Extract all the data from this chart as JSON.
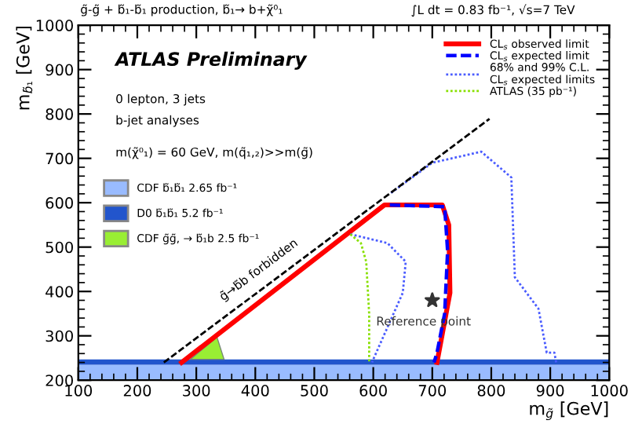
{
  "chart_data": {
    "type": "line",
    "title": "g̃-g̃ + b̃₁-b̃₁ production, b̃₁→ b+χ̃⁰₁",
    "subtitle": "∫L dt = 0.83 fb⁻¹, √s=7 TeV",
    "xlabel": "m$_{g̃}$ [GeV]",
    "ylabel": "m$_{b̃₁}$ [GeV]",
    "xlim": [
      100,
      1000
    ],
    "ylim": [
      200,
      1000
    ],
    "xticks": [
      100,
      200,
      300,
      400,
      500,
      600,
      700,
      800,
      900,
      1000
    ],
    "yticks": [
      200,
      300,
      400,
      500,
      600,
      700,
      800,
      900,
      1000
    ],
    "grid": false,
    "legend": "top right",
    "series": [
      {
        "name": "CL$_{s}$ observed limit",
        "color": "#ff0000",
        "line_style": "solid",
        "x": [
          275,
          619,
          717,
          728,
          730,
          717,
          708
        ],
        "values": [
          240,
          595,
          595,
          550,
          397,
          304,
          240
        ]
      },
      {
        "name": "CL$_{s}$ expected limit",
        "color": "#0000ff",
        "line_style": "dashed",
        "x": [
          628,
          721,
          726,
          721,
          708,
          703
        ],
        "values": [
          595,
          591,
          491,
          350,
          262,
          240
        ]
      },
      {
        "name": "68% and 99% C.L.\nCL$_{s}$ expected limits",
        "color": "#4a5cff",
        "line_style": "dotted",
        "x": [
          630,
          700,
          783,
          834,
          840,
          880,
          894,
          907,
          910
        ],
        "values": [
          622,
          690,
          715,
          657,
          432,
          361,
          262,
          262,
          240
        ]
      },
      {
        "color": "#4a5cff",
        "line_style": "dotted",
        "x": [
          561,
          624,
          655,
          650,
          619,
          601,
          598
        ],
        "values": [
          529,
          509,
          467,
          397,
          304,
          250,
          240
        ]
      },
      {
        "name": "ATLAS (35 pb⁻¹)",
        "color": "#88e000",
        "line_style": "dotted",
        "x": [
          561,
          579,
          588,
          593,
          593
        ],
        "values": [
          529,
          509,
          467,
          350,
          240
        ]
      },
      {
        "color": "#000000",
        "line_style": "dashed",
        "x": [
          245,
          797
        ],
        "values": [
          240,
          789
        ]
      },
      {
        "type": "area",
        "name": "CDF g̃g̃, → b̃₁b 2.5 fb⁻¹",
        "color": "#99ee33",
        "x": [
          290,
          335,
          347
        ],
        "values": [
          247,
          297,
          247
        ]
      },
      {
        "type": "scatter",
        "marker": "star",
        "color": "#333333",
        "x": [
          700
        ],
        "values": [
          380
        ]
      }
    ],
    "bands": [
      {
        "axis": "y",
        "from": 200,
        "to": 235,
        "label": "CDF b̃₁b̃₁ 2.65 fb⁻¹",
        "color": "#99bbff"
      },
      {
        "axis": "y",
        "from": 235,
        "to": 247,
        "label": "D0 b̃₁b̃₁ 5.2 fb⁻¹",
        "color": "#2255cc"
      }
    ],
    "annotations": [
      "ATLAS Preliminary",
      "0 lepton, 3 jets",
      "b-jet analyses",
      "m(χ̃⁰₁) = 60 GeV, m(q̃₁,₂)>>m(g̃)",
      "g̃→b̃b forbidden",
      {
        "text": "Reference point",
        "x": 700,
        "y": 380
      }
    ]
  }
}
